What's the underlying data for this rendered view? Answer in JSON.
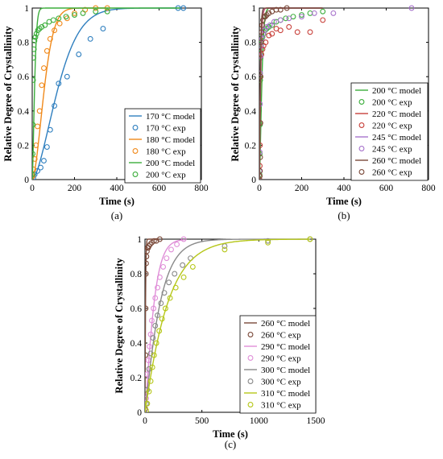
{
  "colors": {
    "blue": "#2f7fbf",
    "orange": "#f08a1c",
    "green": "#3cae3c",
    "red": "#c8403a",
    "purple": "#a874cc",
    "brown": "#7b4a3a",
    "pink": "#e08fd8",
    "gray": "#8a8a8a",
    "yellowgreen": "#b6c71a"
  },
  "chart_data": [
    {
      "type": "line",
      "panel_label": "(a)",
      "xlabel": "Time (s)",
      "ylabel": "Relative Degree of Crystallinity",
      "xlim": [
        0,
        800
      ],
      "ylim": [
        0,
        1
      ],
      "xticks": [
        "0",
        "200",
        "400",
        "600",
        "800"
      ],
      "yticks": [
        "0",
        "0.2",
        "0.4",
        "0.6",
        "0.8",
        "1"
      ],
      "legend": [
        "170 °C model",
        "170 °C exp",
        "180 °C model",
        "180 °C exp",
        "200 °C model",
        "200 °C exp"
      ],
      "legend_position": "bottom-right",
      "series": [
        {
          "name": "170 °C",
          "color": "blue",
          "k": 0.0069,
          "n": 1.6,
          "model_xmax": 700,
          "exp_x": [
            5,
            12,
            25,
            40,
            55,
            70,
            85,
            105,
            125,
            165,
            220,
            275,
            335,
            690,
            715
          ],
          "exp_y": [
            0.01,
            0.03,
            0.05,
            0.07,
            0.11,
            0.19,
            0.29,
            0.43,
            0.56,
            0.6,
            0.73,
            0.82,
            0.88,
            1.0,
            1.0
          ]
        },
        {
          "name": "180 °C",
          "color": "orange",
          "k": 0.0148,
          "n": 1.7,
          "model_xmax": 360,
          "exp_x": [
            2,
            6,
            12,
            18,
            25,
            35,
            45,
            55,
            70,
            85,
            105,
            130,
            165,
            200,
            250,
            300,
            355
          ],
          "exp_y": [
            0.02,
            0.06,
            0.12,
            0.2,
            0.31,
            0.4,
            0.55,
            0.65,
            0.75,
            0.82,
            0.87,
            0.91,
            0.94,
            0.97,
            0.99,
            1.0,
            1.0
          ]
        },
        {
          "name": "200 °C",
          "color": "green",
          "k": 0.075,
          "n": 1.5,
          "model_xmax": 700,
          "exp_x": [
            1,
            2,
            3,
            4,
            6,
            8,
            11,
            15,
            20,
            27,
            35,
            45,
            60,
            80,
            100,
            125,
            160,
            200,
            240,
            300,
            355
          ],
          "exp_y": [
            0.03,
            0.15,
            0.32,
            0.58,
            0.71,
            0.76,
            0.81,
            0.83,
            0.85,
            0.87,
            0.88,
            0.89,
            0.9,
            0.92,
            0.93,
            0.94,
            0.95,
            0.96,
            0.97,
            0.98,
            0.98
          ]
        }
      ]
    },
    {
      "type": "line",
      "panel_label": "(b)",
      "xlabel": "Time (s)",
      "ylabel": "Relative Degree of Crystallinity",
      "xlim": [
        0,
        800
      ],
      "ylim": [
        0,
        1
      ],
      "xticks": [
        "0",
        "200",
        "400",
        "600",
        "800"
      ],
      "yticks": [
        "0",
        "0.2",
        "0.4",
        "0.6",
        "0.8",
        "1"
      ],
      "legend": [
        "200 °C model",
        "200 °C exp",
        "220 °C model",
        "220 °C exp",
        "245 °C model",
        "245 °C exp",
        "260 °C model",
        "260 °C exp"
      ],
      "legend_position": "bottom-right",
      "series": [
        {
          "name": "200 °C",
          "color": "green",
          "k": 0.075,
          "n": 1.5,
          "model_xmax": 300,
          "exp_x": [
            1,
            2,
            3,
            4,
            6,
            8,
            11,
            15,
            20,
            27,
            35,
            45,
            60,
            80,
            100,
            125,
            160,
            200,
            240,
            300
          ],
          "exp_y": [
            0.03,
            0.15,
            0.32,
            0.58,
            0.71,
            0.76,
            0.81,
            0.83,
            0.85,
            0.87,
            0.88,
            0.89,
            0.9,
            0.92,
            0.93,
            0.94,
            0.95,
            0.96,
            0.97,
            0.98
          ]
        },
        {
          "name": "220 °C",
          "color": "red",
          "k": 0.14,
          "n": 1.3,
          "model_xmax": 300,
          "exp_x": [
            1,
            2,
            3,
            4,
            5,
            7,
            10,
            15,
            20,
            30,
            45,
            60,
            80,
            100,
            140,
            180,
            240,
            300
          ],
          "exp_y": [
            0.02,
            0.08,
            0.2,
            0.33,
            0.6,
            0.72,
            0.73,
            0.76,
            0.78,
            0.8,
            0.84,
            0.85,
            0.88,
            0.87,
            0.89,
            0.86,
            0.86,
            0.93
          ]
        },
        {
          "name": "245 °C",
          "color": "purple",
          "k": 0.18,
          "n": 1.2,
          "model_xmax": 300,
          "exp_x": [
            1,
            2,
            3,
            4,
            6,
            8,
            12,
            18,
            25,
            35,
            50,
            70,
            100,
            140,
            200,
            260,
            350,
            720
          ],
          "exp_y": [
            0.05,
            0.16,
            0.44,
            0.62,
            0.72,
            0.78,
            0.82,
            0.85,
            0.87,
            0.89,
            0.9,
            0.92,
            0.93,
            0.94,
            0.95,
            0.97,
            0.97,
            1.0
          ]
        },
        {
          "name": "260 °C",
          "color": "brown",
          "k": 0.2,
          "n": 1.25,
          "model_xmax": 300,
          "exp_x": [
            1,
            2,
            3,
            4,
            5,
            6,
            8,
            10,
            13,
            17,
            22,
            28,
            35,
            45,
            60,
            80,
            100,
            130
          ],
          "exp_y": [
            0.0,
            0.02,
            0.05,
            0.13,
            0.33,
            0.6,
            0.8,
            0.86,
            0.9,
            0.93,
            0.95,
            0.95,
            0.96,
            0.97,
            0.98,
            0.99,
            0.99,
            1.0
          ]
        }
      ]
    },
    {
      "type": "line",
      "panel_label": "(c)",
      "xlabel": "Time (s)",
      "ylabel": "Relative Degree of Crystallinity",
      "xlim": [
        0,
        1500
      ],
      "ylim": [
        0,
        1
      ],
      "xticks": [
        "0",
        "500",
        "1000",
        "1500"
      ],
      "yticks": [
        "0",
        "0.2",
        "0.4",
        "0.6",
        "0.8",
        "1"
      ],
      "legend": [
        "260 °C model",
        "260 °C exp",
        "290 °C model",
        "290 °C exp",
        "300 °C model",
        "300 °C exp",
        "310 °C model",
        "310 °C exp"
      ],
      "legend_position": "bottom-right",
      "series": [
        {
          "name": "260 °C",
          "color": "brown",
          "k": 0.2,
          "n": 1.25,
          "model_xmax": 130,
          "exp_x": [
            2,
            4,
            5,
            6,
            8,
            10,
            13,
            17,
            22,
            28,
            35,
            45,
            60,
            80,
            100,
            130
          ],
          "exp_y": [
            0.02,
            0.13,
            0.33,
            0.6,
            0.8,
            0.86,
            0.9,
            0.93,
            0.95,
            0.95,
            0.96,
            0.97,
            0.98,
            0.99,
            0.99,
            1.0
          ]
        },
        {
          "name": "290 °C",
          "color": "pink",
          "k": 0.0125,
          "n": 1.2,
          "model_xmax": 350,
          "exp_x": [
            10,
            20,
            30,
            40,
            50,
            60,
            75,
            90,
            110,
            130,
            160,
            190,
            230,
            280,
            340
          ],
          "exp_y": [
            0.08,
            0.22,
            0.3,
            0.38,
            0.45,
            0.53,
            0.6,
            0.66,
            0.72,
            0.78,
            0.84,
            0.89,
            0.94,
            0.97,
            1.0
          ]
        },
        {
          "name": "300 °C",
          "color": "gray",
          "k": 0.0075,
          "n": 1.1,
          "model_xmax": 1450,
          "exp_x": [
            10,
            20,
            35,
            50,
            70,
            90,
            110,
            140,
            170,
            210,
            260,
            330,
            400,
            700,
            1080,
            1450
          ],
          "exp_y": [
            0.05,
            0.13,
            0.25,
            0.34,
            0.43,
            0.5,
            0.56,
            0.63,
            0.69,
            0.75,
            0.8,
            0.85,
            0.89,
            0.96,
            0.99,
            1.0
          ]
        },
        {
          "name": "310 °C",
          "color": "yellowgreen",
          "k": 0.005,
          "n": 1.05,
          "model_xmax": 1450,
          "exp_x": [
            10,
            20,
            35,
            50,
            65,
            80,
            100,
            125,
            150,
            180,
            220,
            270,
            340,
            420,
            700,
            1080,
            1450
          ],
          "exp_y": [
            0.01,
            0.05,
            0.12,
            0.18,
            0.26,
            0.33,
            0.4,
            0.47,
            0.54,
            0.6,
            0.66,
            0.72,
            0.78,
            0.84,
            0.94,
            0.98,
            1.0
          ]
        }
      ]
    }
  ]
}
